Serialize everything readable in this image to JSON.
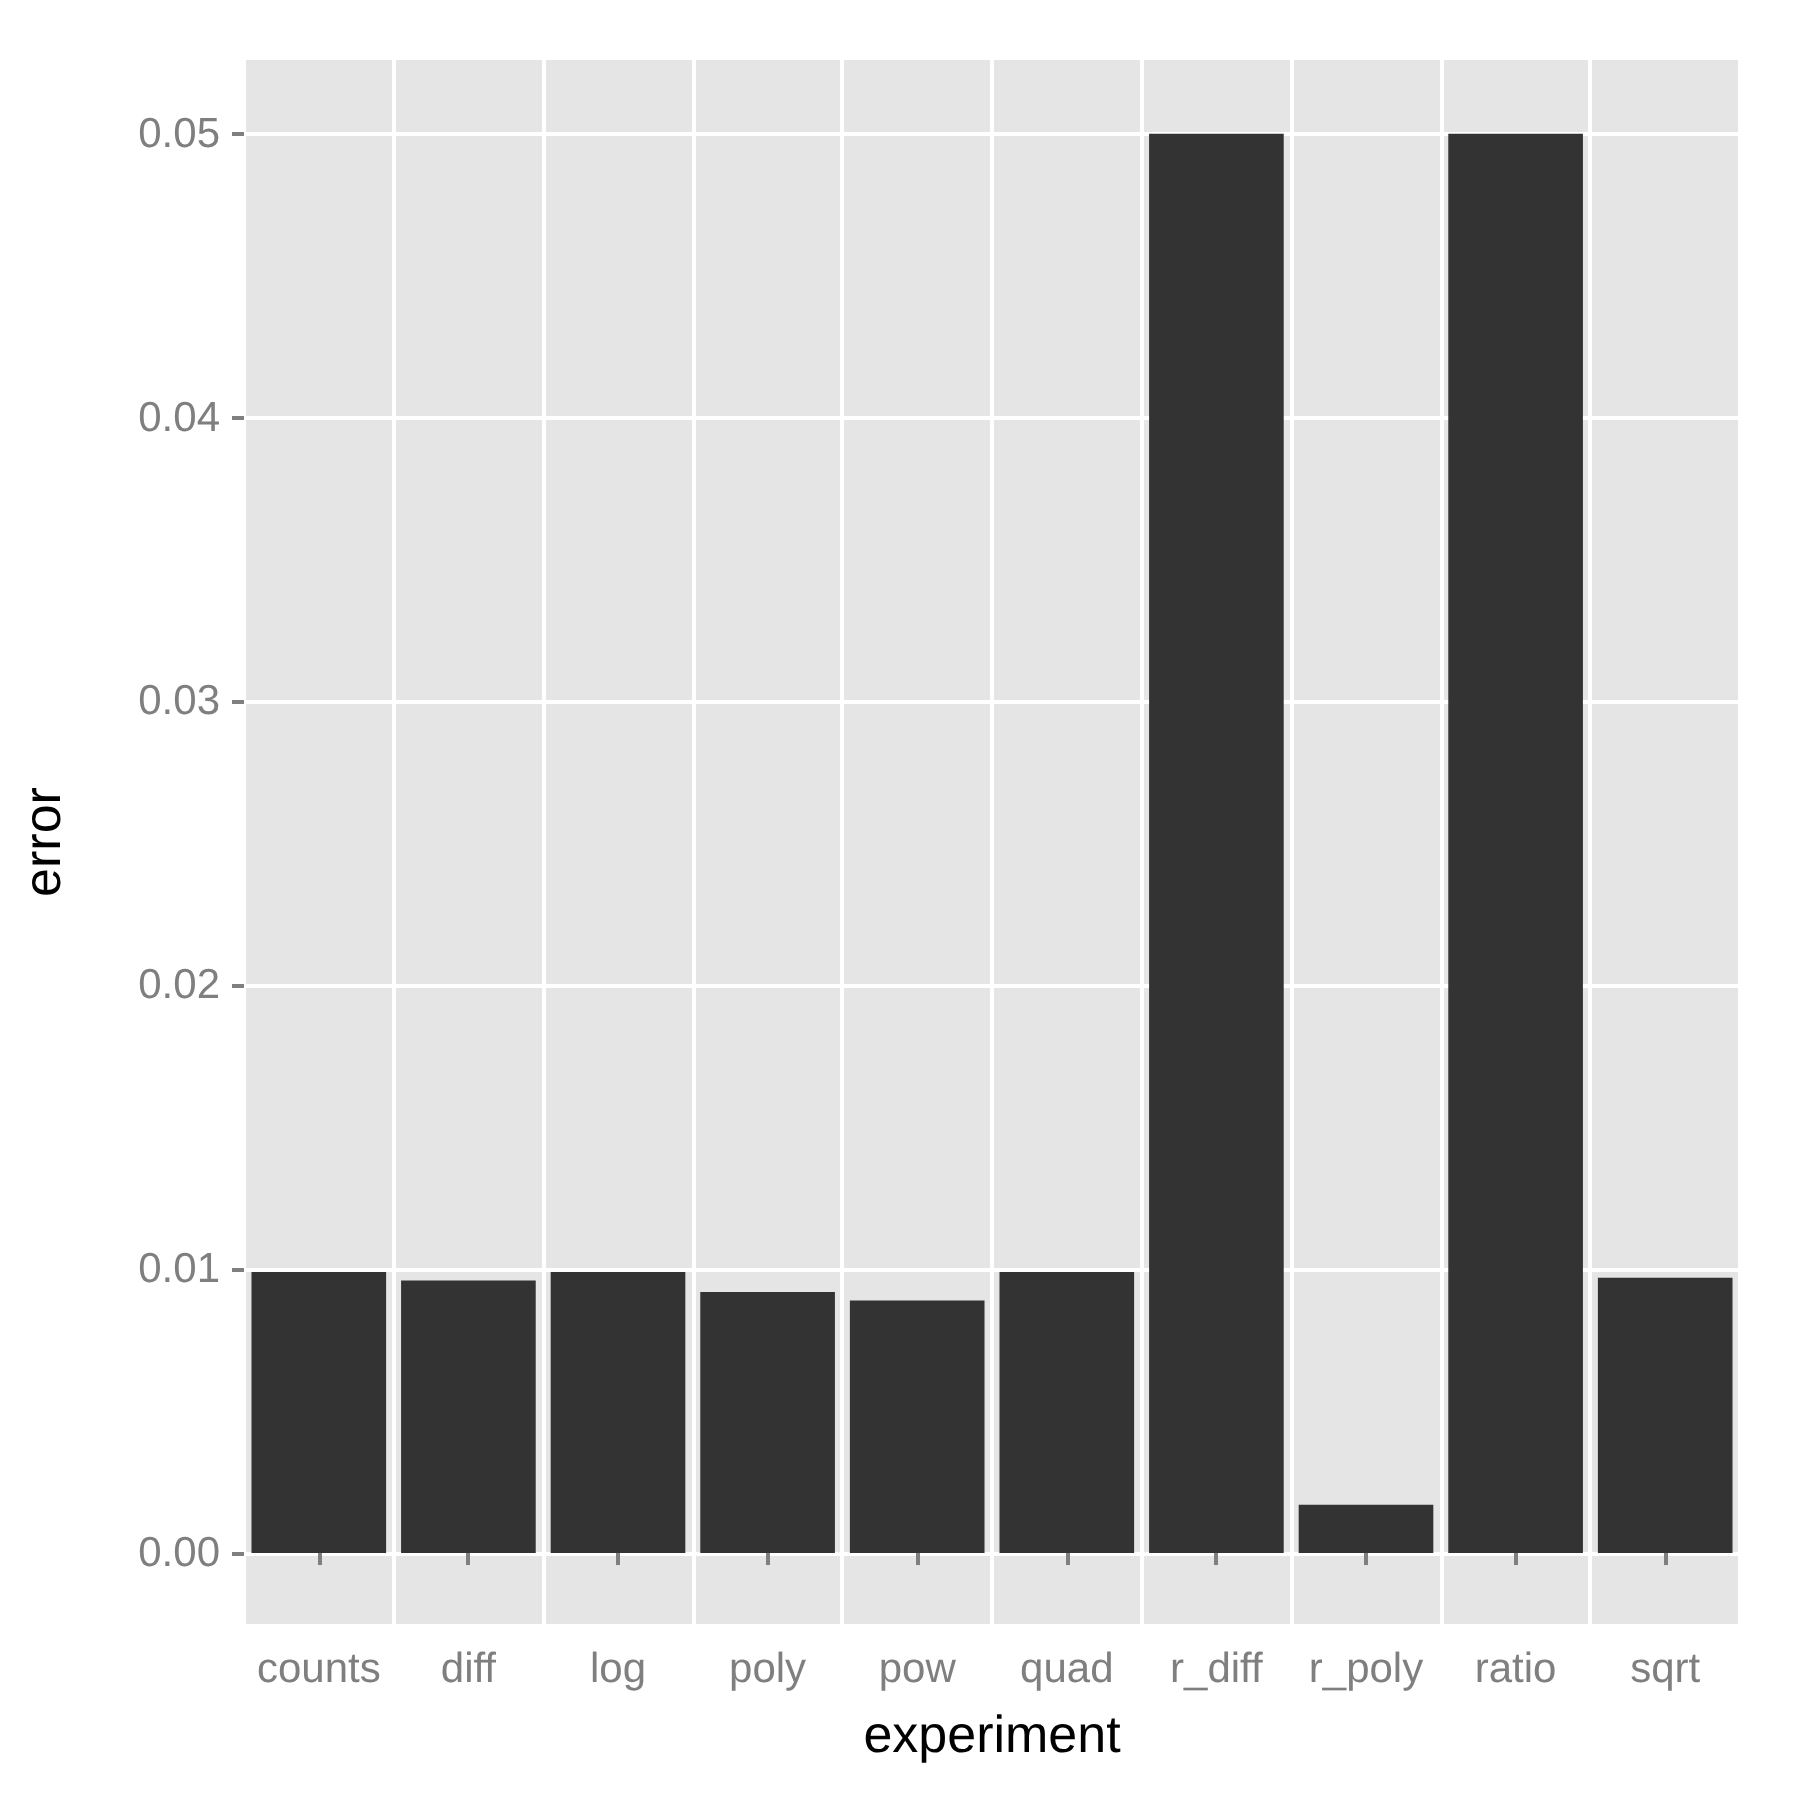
{
  "chart_data": {
    "type": "bar",
    "xlabel": "experiment",
    "ylabel": "error",
    "categories": [
      "counts",
      "diff",
      "log",
      "poly",
      "pow",
      "quad",
      "r_diff",
      "r_poly",
      "ratio",
      "sqrt"
    ],
    "values": [
      0.0099,
      0.0096,
      0.0099,
      0.0092,
      0.0089,
      0.0099,
      0.05,
      0.0017,
      0.05,
      0.0097
    ],
    "color": "#333333",
    "ylim": [
      -0.0025,
      0.0526
    ],
    "yticks": [
      {
        "value": 0,
        "label": "0.00"
      },
      {
        "value": 0.01,
        "label": "0.01"
      },
      {
        "value": 0.02,
        "label": "0.02"
      },
      {
        "value": 0.03,
        "label": "0.03"
      },
      {
        "value": 0.04,
        "label": "0.04"
      },
      {
        "value": 0.05,
        "label": "0.05"
      }
    ],
    "grid": true
  }
}
